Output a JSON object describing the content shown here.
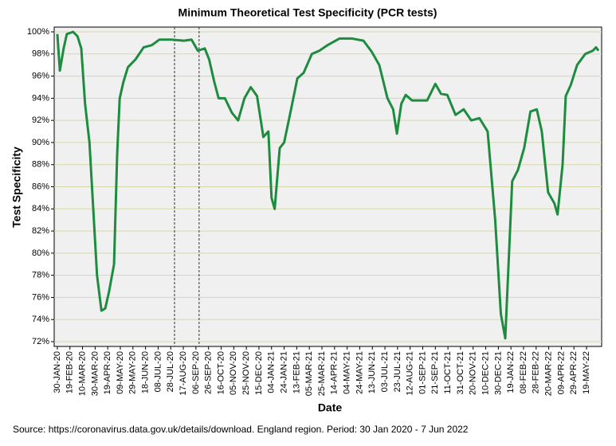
{
  "chart_data": {
    "type": "line",
    "title": "Minimum Theoretical Test Specificity (PCR tests)",
    "x_label": "Date",
    "y_label": "Test Specificity",
    "source": "Source: https://coronavirus.data.gov.uk/details/download. England region. Period: 30 Jan 2020 - 7 Jun 2022",
    "x": [
      "30-JAN-20",
      "03-FEB-20",
      "09-FEB-20",
      "14-FEB-20",
      "24-FEB-20",
      "02-MAR-20",
      "08-MAR-20",
      "14-MAR-20",
      "21-MAR-20",
      "27-MAR-20",
      "02-APR-20",
      "09-APR-20",
      "15-APR-20",
      "21-APR-20",
      "29-APR-20",
      "04-MAY-20",
      "08-MAY-20",
      "14-MAY-20",
      "21-MAY-20",
      "02-JUN-20",
      "15-JUN-20",
      "28-JUN-20",
      "10-JUL-20",
      "29-JUL-20",
      "18-AUG-20",
      "30-AUG-20",
      "09-SEP-20",
      "20-SEP-20",
      "27-SEP-20",
      "05-OCT-20",
      "12-OCT-20",
      "22-OCT-20",
      "02-NOV-20",
      "12-NOV-20",
      "22-NOV-20",
      "02-DEC-20",
      "12-DEC-20",
      "22-DEC-20",
      "30-DEC-20",
      "04-JAN-21",
      "09-JAN-21",
      "17-JAN-21",
      "24-JAN-21",
      "04-FEB-21",
      "14-FEB-21",
      "24-FEB-21",
      "09-MAR-21",
      "21-MAR-21",
      "03-APR-21",
      "22-APR-21",
      "11-MAY-21",
      "30-MAY-21",
      "12-JUN-21",
      "24-JUN-21",
      "07-JUL-21",
      "16-JUL-21",
      "22-JUL-21",
      "29-JUL-21",
      "05-AUG-21",
      "15-AUG-21",
      "27-AUG-21",
      "08-SEP-21",
      "21-SEP-21",
      "30-SEP-21",
      "10-OCT-21",
      "23-OCT-21",
      "05-NOV-21",
      "17-NOV-21",
      "30-NOV-21",
      "13-DEC-21",
      "25-DEC-21",
      "03-JAN-22",
      "10-JAN-22",
      "16-JAN-22",
      "21-JAN-22",
      "30-JAN-22",
      "09-FEB-22",
      "19-FEB-22",
      "01-MAR-22",
      "09-MAR-22",
      "19-MAR-22",
      "29-MAR-22",
      "03-APR-22",
      "11-APR-22",
      "16-APR-22",
      "24-APR-22",
      "04-MAY-22",
      "17-MAY-22",
      "29-MAY-22",
      "03-JUN-22",
      "07-JUN-22"
    ],
    "series": [
      {
        "color": "#1e8c3f",
        "values": [
          99.8,
          96.5,
          98.5,
          99.8,
          100,
          99.6,
          98.5,
          93.5,
          90,
          84,
          78,
          74.8,
          75,
          76.5,
          79,
          89,
          94,
          95.5,
          96.8,
          97.5,
          98.6,
          98.8,
          99.3,
          99.3,
          99.2,
          99.3,
          98.3,
          98.5,
          97.5,
          95.5,
          94,
          94,
          92.7,
          92,
          94,
          95,
          94.2,
          90.5,
          91,
          85,
          84,
          89.5,
          90,
          93,
          95.8,
          96.3,
          98,
          98.3,
          98.8,
          99.4,
          99.4,
          99.2,
          98.2,
          97,
          94,
          93,
          90.8,
          93.5,
          94.3,
          93.8,
          93.8,
          93.8,
          95.3,
          94.4,
          94.3,
          92.5,
          93,
          92,
          92.2,
          91,
          83,
          74.5,
          72.3,
          80,
          86.5,
          87.5,
          89.5,
          92.8,
          93,
          91,
          85.5,
          84.5,
          83.5,
          88,
          94.2,
          95.2,
          97,
          98,
          98.3,
          98.6,
          98.3
        ]
      }
    ],
    "xlim": [
      "25-JAN-20",
      "12-JUN-22"
    ],
    "xticks": [
      "30-JAN-20",
      "19-FEB-20",
      "10-MAR-20",
      "30-MAR-20",
      "19-APR-20",
      "09-MAY-20",
      "29-MAY-20",
      "18-JUN-20",
      "08-JUL-20",
      "28-JUL-20",
      "17-AUG-20",
      "06-SEP-20",
      "26-SEP-20",
      "16-OCT-20",
      "05-NOV-20",
      "25-NOV-20",
      "15-DEC-20",
      "04-JAN-21",
      "24-JAN-21",
      "13-FEB-21",
      "05-MAR-21",
      "25-MAR-21",
      "14-APR-21",
      "04-MAY-21",
      "24-MAY-21",
      "13-JUN-21",
      "03-JUL-21",
      "23-JUL-21",
      "12-AUG-21",
      "01-SEP-21",
      "21-SEP-21",
      "11-OCT-21",
      "31-OCT-21",
      "20-NOV-21",
      "10-DEC-21",
      "30-DEC-21",
      "19-JAN-22",
      "08-FEB-22",
      "28-FEB-22",
      "20-MAR-22",
      "09-APR-22",
      "29-APR-22",
      "19-MAY-22"
    ],
    "vlines": [
      "03-AUG-20",
      "11-SEP-20"
    ],
    "ylim": [
      72,
      100
    ],
    "yticks": [
      {
        "value": 72,
        "label": "72%"
      },
      {
        "value": 74,
        "label": "74%"
      },
      {
        "value": 76,
        "label": "76%"
      },
      {
        "value": 78,
        "label": "78%"
      },
      {
        "value": 80,
        "label": "80%"
      },
      {
        "value": 82,
        "label": "82%"
      },
      {
        "value": 84,
        "label": "84%"
      },
      {
        "value": 86,
        "label": "86%"
      },
      {
        "value": 88,
        "label": "88%"
      },
      {
        "value": 90,
        "label": "90%"
      },
      {
        "value": 92,
        "label": "92%"
      },
      {
        "value": 94,
        "label": "94%"
      },
      {
        "value": 96,
        "label": "96%"
      },
      {
        "value": 98,
        "label": "98%"
      },
      {
        "value": 100,
        "label": "100%"
      }
    ],
    "grid": true
  }
}
